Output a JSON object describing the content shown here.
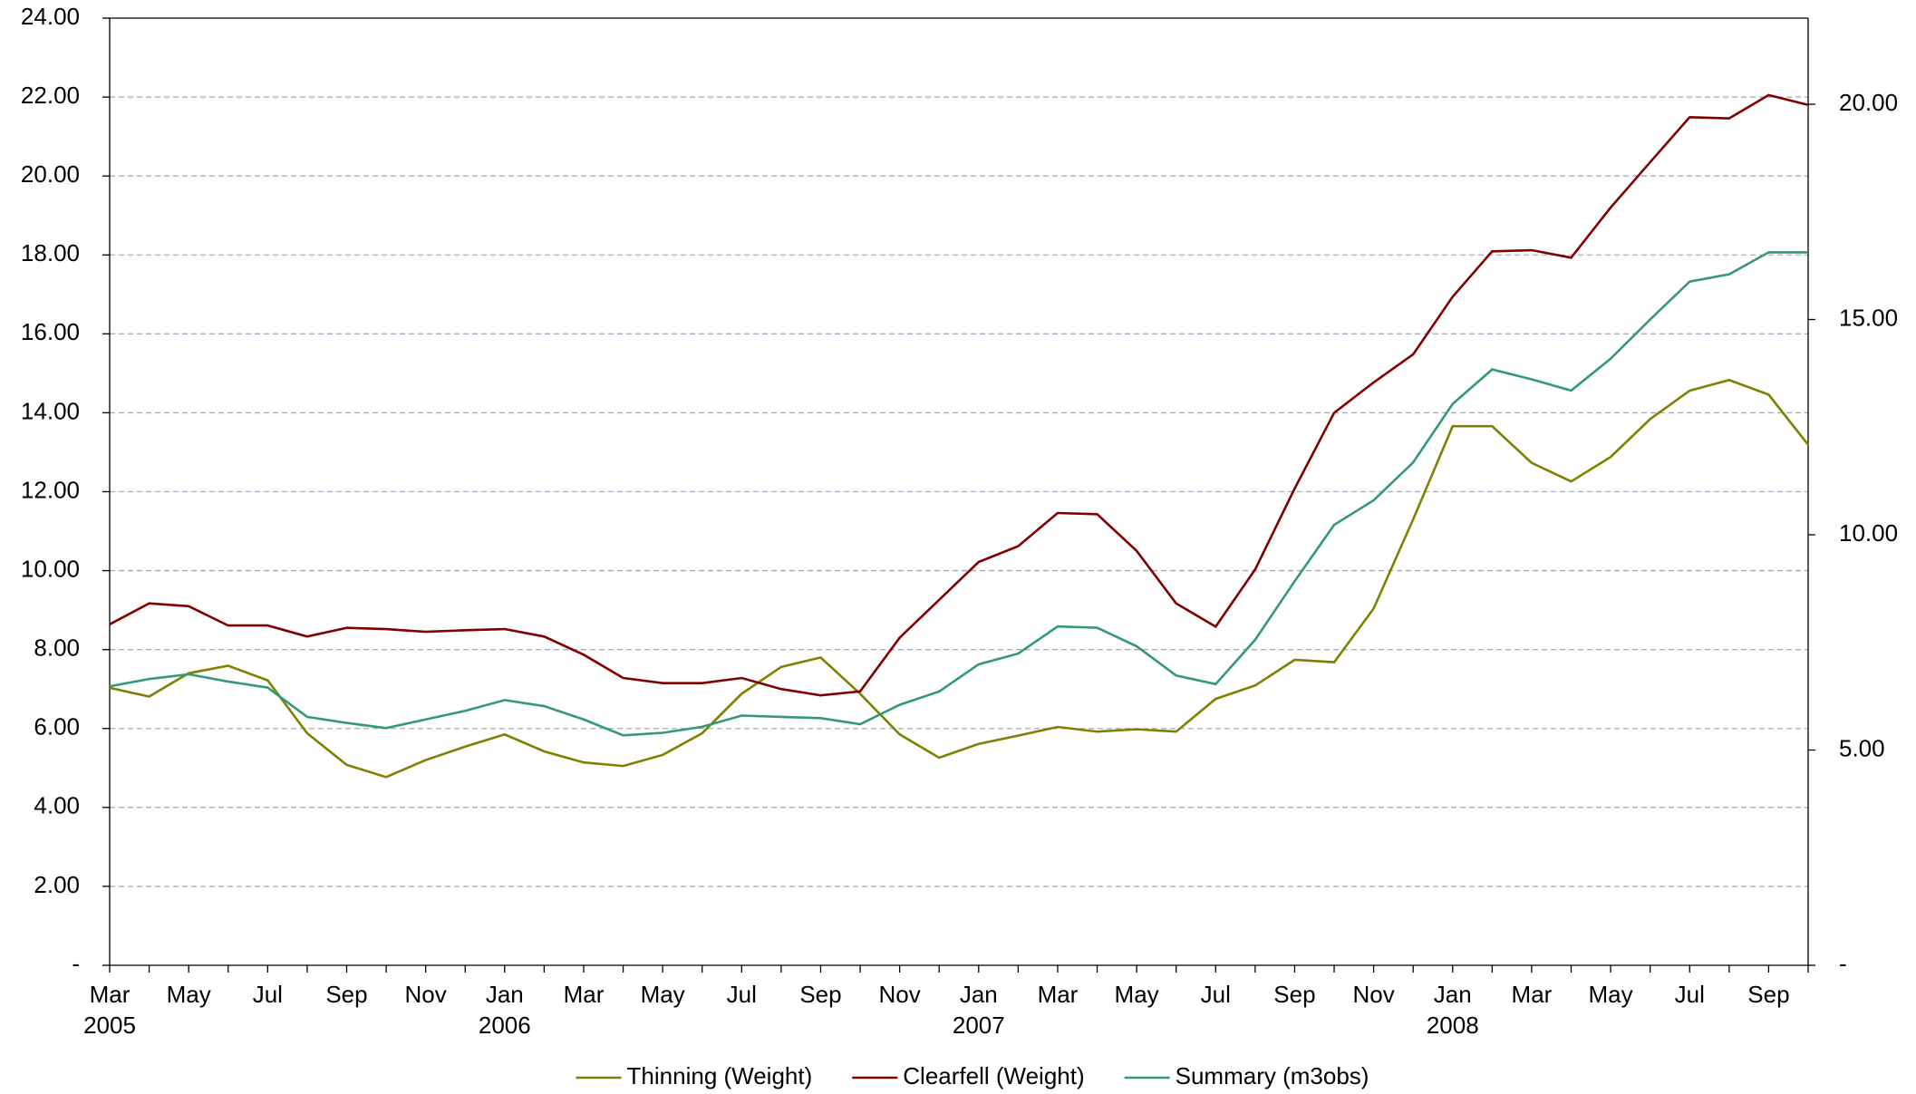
{
  "chart_data": {
    "type": "line",
    "categories": [
      "Mar 2005",
      null,
      "May",
      null,
      "Jul",
      null,
      "Sep",
      null,
      "Nov",
      null,
      "Jan 2006",
      null,
      "Mar",
      null,
      "May",
      null,
      "Jul",
      null,
      "Sep",
      null,
      "Nov",
      null,
      "Jan 2007",
      null,
      "Mar",
      null,
      "May",
      null,
      "Jul",
      null,
      "Sep",
      null,
      "Nov",
      null,
      "Jan 2008",
      null,
      "Mar",
      null,
      "May",
      null,
      "Jul",
      null,
      "Sep",
      null
    ],
    "series": [
      {
        "name": "Thinning (Weight)",
        "color": "#808000",
        "values": [
          7.03,
          6.81,
          7.4,
          7.59,
          7.22,
          5.88,
          5.08,
          4.77,
          5.2,
          5.54,
          5.85,
          5.42,
          5.14,
          5.05,
          5.33,
          5.88,
          6.88,
          7.56,
          7.8,
          6.88,
          5.85,
          5.26,
          5.61,
          5.82,
          6.04,
          5.92,
          5.98,
          5.92,
          6.75,
          7.09,
          7.74,
          7.68,
          9.04,
          11.3,
          13.66,
          13.66,
          12.73,
          12.26,
          12.88,
          13.84,
          14.56,
          14.83,
          14.46,
          13.19
        ]
      },
      {
        "name": "Clearfell (Weight)",
        "color": "#800000",
        "values": [
          8.64,
          9.17,
          9.1,
          8.61,
          8.61,
          8.33,
          8.55,
          8.52,
          8.45,
          8.49,
          8.52,
          8.33,
          7.87,
          7.28,
          7.15,
          7.15,
          7.28,
          7.0,
          6.84,
          6.94,
          8.3,
          9.26,
          10.22,
          10.62,
          11.46,
          11.43,
          10.5,
          9.17,
          8.58,
          10.03,
          12.08,
          14.0,
          14.77,
          15.48,
          16.94,
          18.09,
          18.12,
          17.93,
          19.2,
          20.35,
          21.49,
          21.46,
          22.05,
          21.8
        ]
      },
      {
        "name": "Summary (m3obs)",
        "color": "#339977",
        "axis": "y2",
        "values": [
          6.48,
          6.65,
          6.76,
          6.59,
          6.45,
          5.77,
          5.63,
          5.51,
          5.71,
          5.91,
          6.16,
          6.02,
          5.71,
          5.34,
          5.4,
          5.54,
          5.8,
          5.77,
          5.74,
          5.6,
          6.05,
          6.36,
          6.99,
          7.24,
          7.87,
          7.84,
          7.41,
          6.73,
          6.53,
          7.56,
          8.92,
          10.23,
          10.8,
          11.68,
          13.04,
          13.84,
          13.61,
          13.35,
          14.09,
          15.0,
          15.88,
          16.05,
          16.56,
          16.56
        ]
      }
    ],
    "ylim": [
      0,
      24
    ],
    "yticks": [
      {
        "value": 0,
        "label": "-"
      },
      {
        "value": 2,
        "label": "2.00"
      },
      {
        "value": 4,
        "label": "4.00"
      },
      {
        "value": 6,
        "label": "6.00"
      },
      {
        "value": 8,
        "label": "8.00"
      },
      {
        "value": 10,
        "label": "10.00"
      },
      {
        "value": 12,
        "label": "12.00"
      },
      {
        "value": 14,
        "label": "14.00"
      },
      {
        "value": 16,
        "label": "16.00"
      },
      {
        "value": 18,
        "label": "18.00"
      },
      {
        "value": 20,
        "label": "20.00"
      },
      {
        "value": 22,
        "label": "22.00"
      },
      {
        "value": 24,
        "label": "24.00"
      }
    ],
    "y2lim": [
      0,
      22
    ],
    "y2ticks": [
      {
        "value": 0,
        "label": "-"
      },
      {
        "value": 5,
        "label": "5.00"
      },
      {
        "value": 10,
        "label": "10.00"
      },
      {
        "value": 15,
        "label": "15.00"
      },
      {
        "value": 20,
        "label": "20.00"
      }
    ],
    "grid": true,
    "legend": "bottom"
  }
}
